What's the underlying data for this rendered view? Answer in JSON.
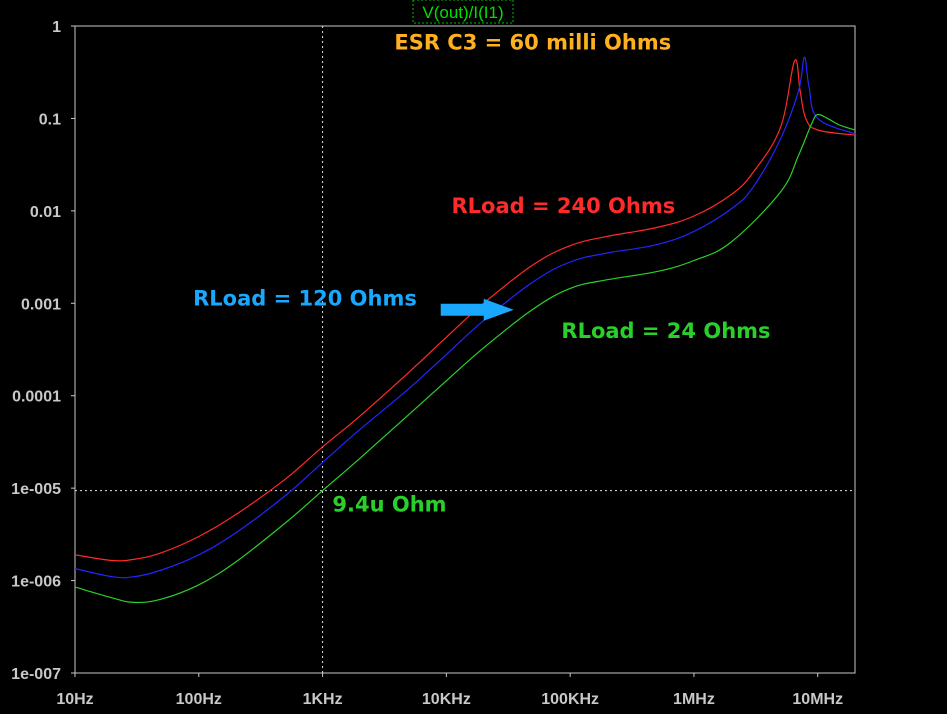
{
  "chart_data": {
    "type": "line",
    "title": "V(out)/I(I1)",
    "x_scale": "log",
    "y_scale": "log",
    "xlim": [
      10,
      20000000
    ],
    "ylim": [
      1e-07,
      1
    ],
    "x_ticks": [
      {
        "value": 10,
        "label": "10Hz"
      },
      {
        "value": 100,
        "label": "100Hz"
      },
      {
        "value": 1000,
        "label": "1KHz"
      },
      {
        "value": 10000,
        "label": "10KHz"
      },
      {
        "value": 100000,
        "label": "100KHz"
      },
      {
        "value": 1000000,
        "label": "1MHz"
      },
      {
        "value": 10000000,
        "label": "10MHz"
      }
    ],
    "y_ticks": [
      {
        "value": 1,
        "label": "1"
      },
      {
        "value": 0.1,
        "label": "0.1"
      },
      {
        "value": 0.01,
        "label": "0.01"
      },
      {
        "value": 0.001,
        "label": "0.001"
      },
      {
        "value": 0.0001,
        "label": "0.0001"
      },
      {
        "value": 1e-05,
        "label": "1e-005"
      },
      {
        "value": 1e-06,
        "label": "1e-006"
      },
      {
        "value": 1e-07,
        "label": "1e-007"
      }
    ],
    "cursor": {
      "x": 1000,
      "y": 9.4e-06
    },
    "series": [
      {
        "name": "RLoad = 240 Ohms",
        "color": "#ff2a2a",
        "points": [
          [
            10,
            1.9e-06
          ],
          [
            20,
            1.65e-06
          ],
          [
            30,
            1.7e-06
          ],
          [
            50,
            2e-06
          ],
          [
            100,
            3e-06
          ],
          [
            200,
            5.2e-06
          ],
          [
            500,
            1.25e-05
          ],
          [
            1000,
            2.8e-05
          ],
          [
            2000,
            6e-05
          ],
          [
            5000,
            0.00018
          ],
          [
            10000,
            0.00043
          ],
          [
            20000,
            0.001
          ],
          [
            50000,
            0.0026
          ],
          [
            100000,
            0.0042
          ],
          [
            200000,
            0.0053
          ],
          [
            500000,
            0.0066
          ],
          [
            1000000,
            0.0088
          ],
          [
            2000000,
            0.015
          ],
          [
            3000000,
            0.026
          ],
          [
            5000000,
            0.08
          ],
          [
            6500000,
            0.42
          ],
          [
            7200000,
            0.2
          ],
          [
            8000000,
            0.1
          ],
          [
            10000000,
            0.075
          ],
          [
            20000000,
            0.066
          ]
        ]
      },
      {
        "name": "RLoad = 120 Ohms",
        "color": "#2424ff",
        "points": [
          [
            10,
            1.35e-06
          ],
          [
            20,
            1.1e-06
          ],
          [
            30,
            1.1e-06
          ],
          [
            50,
            1.3e-06
          ],
          [
            100,
            1.9e-06
          ],
          [
            200,
            3.3e-06
          ],
          [
            500,
            8.3e-06
          ],
          [
            1000,
            1.9e-05
          ],
          [
            2000,
            4.3e-05
          ],
          [
            5000,
            0.00012
          ],
          [
            10000,
            0.00028
          ],
          [
            20000,
            0.00065
          ],
          [
            50000,
            0.0017
          ],
          [
            100000,
            0.0028
          ],
          [
            200000,
            0.0035
          ],
          [
            500000,
            0.0043
          ],
          [
            1000000,
            0.006
          ],
          [
            2000000,
            0.0105
          ],
          [
            3000000,
            0.018
          ],
          [
            5000000,
            0.06
          ],
          [
            7000000,
            0.2
          ],
          [
            7800000,
            0.46
          ],
          [
            8500000,
            0.22
          ],
          [
            10000000,
            0.1
          ],
          [
            20000000,
            0.068
          ]
        ]
      },
      {
        "name": "RLoad = 24 Ohms",
        "color": "#2ad02a",
        "points": [
          [
            10,
            8.5e-07
          ],
          [
            20,
            6.5e-07
          ],
          [
            30,
            5.8e-07
          ],
          [
            50,
            6.3e-07
          ],
          [
            100,
            9e-07
          ],
          [
            200,
            1.6e-06
          ],
          [
            500,
            4.2e-06
          ],
          [
            1000,
            9.4e-06
          ],
          [
            2000,
            2.1e-05
          ],
          [
            5000,
            6.3e-05
          ],
          [
            10000,
            0.000145
          ],
          [
            20000,
            0.00033
          ],
          [
            50000,
            0.00086
          ],
          [
            100000,
            0.00145
          ],
          [
            200000,
            0.0018
          ],
          [
            500000,
            0.0022
          ],
          [
            1000000,
            0.0029
          ],
          [
            2000000,
            0.0046
          ],
          [
            5000000,
            0.016
          ],
          [
            7000000,
            0.04
          ],
          [
            9000000,
            0.09
          ],
          [
            10000000,
            0.11
          ],
          [
            12000000,
            0.1
          ],
          [
            15000000,
            0.085
          ],
          [
            20000000,
            0.075
          ]
        ]
      }
    ],
    "annotations": [
      {
        "text": "ESR C3 = 60 milli Ohms",
        "color": "#ffb020",
        "x": 3800,
        "y": 0.56
      },
      {
        "text": "RLoad = 240 Ohms",
        "color": "#ff2a2a",
        "x": 11000,
        "y": 0.0095
      },
      {
        "text": "RLoad = 120 Ohms",
        "color": "#1aa8ff",
        "x": 90,
        "y": 0.00095
      },
      {
        "text": "RLoad = 24 Ohms",
        "color": "#2ad02a",
        "x": 85000,
        "y": 0.00042
      },
      {
        "text": "9.4u Ohm",
        "color": "#2ad02a",
        "x": 1200,
        "y": 5.6e-06
      }
    ],
    "arrow": {
      "color": "#1aa8ff",
      "from": [
        9000,
        0.00085
      ],
      "to": [
        35000,
        0.00085
      ]
    }
  }
}
